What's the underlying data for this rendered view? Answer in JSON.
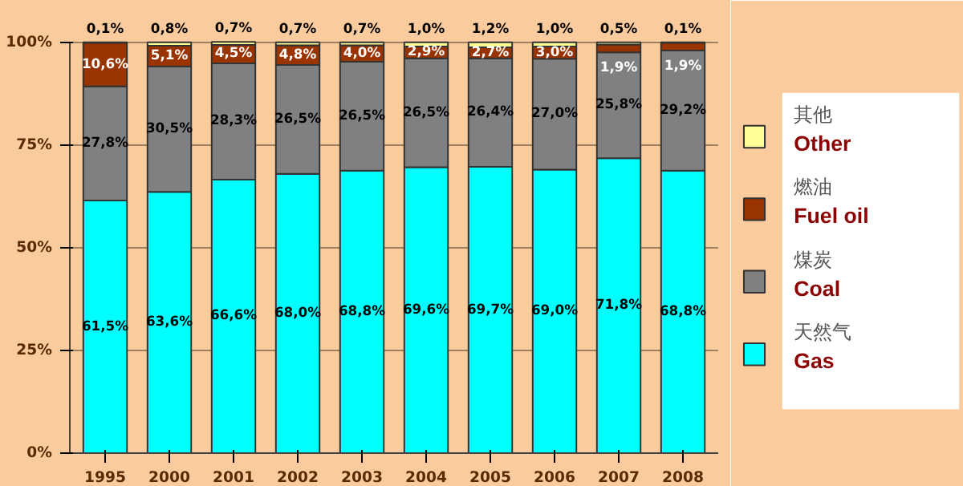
{
  "chart_data": {
    "type": "bar",
    "stacked": true,
    "categories": [
      "1995",
      "2000",
      "2001",
      "2002",
      "2003",
      "2004",
      "2005",
      "2006",
      "2007",
      "2008"
    ],
    "series": [
      {
        "name": "天然气\nGas",
        "color": "#00ffff",
        "values": [
          61.5,
          63.6,
          66.6,
          68.0,
          68.8,
          69.6,
          69.7,
          69.0,
          71.8,
          68.8
        ],
        "value_labels": [
          "61,5%",
          "63,6%",
          "66,6%",
          "68,0%",
          "68,8%",
          "69,6%",
          "69,7%",
          "69,0%",
          "71,8%",
          "68,8%"
        ]
      },
      {
        "name": "煤炭\nCoal",
        "color": "#808080",
        "values": [
          27.8,
          30.5,
          28.3,
          26.5,
          26.5,
          26.5,
          26.4,
          27.0,
          25.8,
          29.2
        ],
        "value_labels": [
          "27,8%",
          "30,5%",
          "28,3%",
          "26,5%",
          "26,5%",
          "26,5%",
          "26,4%",
          "27,0%",
          "25,8%",
          "29,2%"
        ]
      },
      {
        "name": "燃油\nFuel oil",
        "color": "#993300",
        "values": [
          10.6,
          5.1,
          4.5,
          4.8,
          4.0,
          2.9,
          2.7,
          3.0,
          1.9,
          1.9
        ],
        "value_labels": [
          "10,6%",
          "5,1%",
          "4,5%",
          "4,8%",
          "4,0%",
          "2,9%",
          "2,7%",
          "3,0%",
          "1,9%",
          "1,9%"
        ]
      },
      {
        "name": "其他\nOther",
        "color": "#ffff99",
        "values": [
          0.1,
          0.8,
          0.7,
          0.7,
          0.7,
          1.0,
          1.2,
          1.0,
          0.5,
          0.1
        ],
        "value_labels": [
          "0,1%",
          "0,8%",
          "0,7%",
          "0,7%",
          "0,7%",
          "1,0%",
          "1,2%",
          "1,0%",
          "0,5%",
          "0,1%"
        ]
      }
    ],
    "ylim": [
      0,
      100
    ],
    "yticks": [
      {
        "value": 0,
        "label": "0%"
      },
      {
        "value": 25,
        "label": "25%"
      },
      {
        "value": 50,
        "label": "50%"
      },
      {
        "value": 75,
        "label": "75%"
      },
      {
        "value": 100,
        "label": "100%"
      }
    ],
    "grid": "y",
    "legend": "right"
  }
}
